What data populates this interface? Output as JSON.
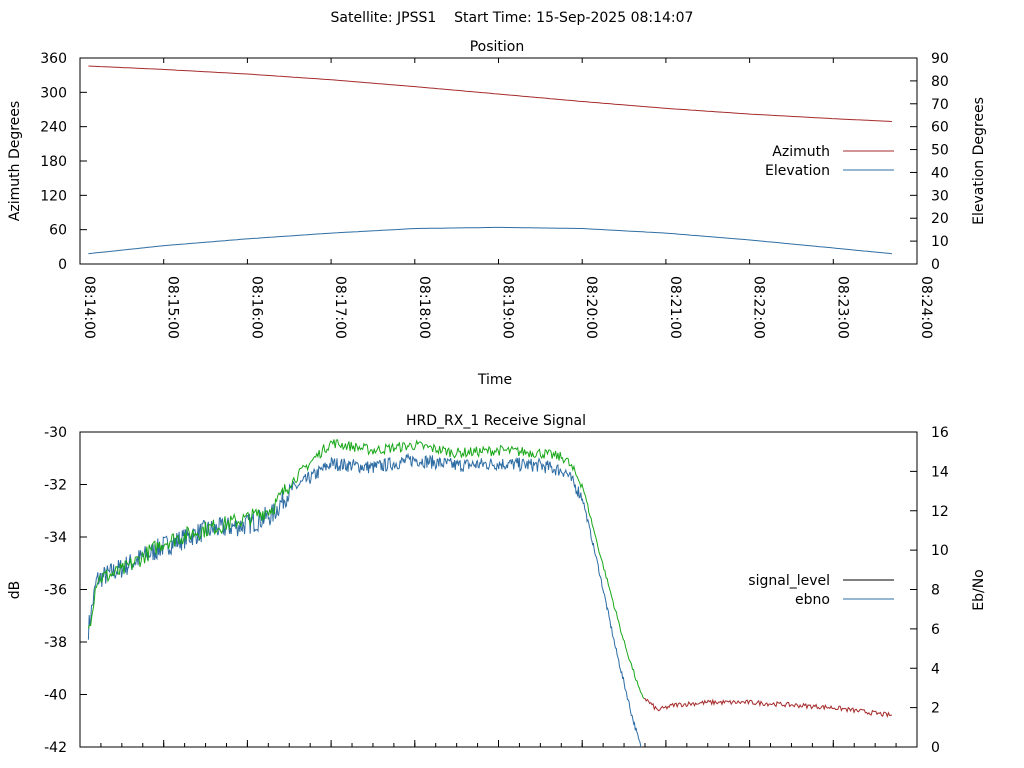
{
  "header": "Satellite: JPSS1    Start Time: 15-Sep-2025 08:14:07",
  "colors": {
    "azimuth": "#a52a2a",
    "elevation": "#2e6da4",
    "signal_level_green": "#1aa81a",
    "signal_level_red": "#a52a2a",
    "ebno": "#2e6da4",
    "legend_signal_level": "#000000"
  },
  "chart_data": [
    {
      "type": "line",
      "title": "Position",
      "xlabel": "Time",
      "ylabel": "Azimuth Degrees",
      "y2label": "Elevation Degrees",
      "xticks": [
        "08:14:00",
        "08:15:00",
        "08:16:00",
        "08:17:00",
        "08:18:00",
        "08:19:00",
        "08:20:00",
        "08:21:00",
        "08:22:00",
        "08:23:00",
        "08:24:00"
      ],
      "xlim": [
        0,
        10
      ],
      "ylim": [
        0,
        360
      ],
      "yticks": [
        0,
        60,
        120,
        180,
        240,
        300,
        360
      ],
      "y2lim": [
        0,
        90
      ],
      "y2ticks": [
        0,
        10,
        20,
        30,
        40,
        50,
        60,
        70,
        80,
        90
      ],
      "legend_position": "right",
      "series": [
        {
          "name": "Azimuth",
          "axis": "y",
          "x": [
            0.1,
            1,
            2,
            3,
            4,
            5,
            6,
            7,
            8,
            9,
            9.7
          ],
          "y": [
            346,
            340,
            332,
            322,
            310,
            297,
            284,
            272,
            262,
            254,
            249
          ]
        },
        {
          "name": "Elevation",
          "axis": "y2",
          "x": [
            0.1,
            1,
            2,
            3,
            4,
            5,
            6,
            7,
            8,
            9,
            9.7
          ],
          "y": [
            4.5,
            8,
            11,
            13.5,
            15.5,
            16,
            15.5,
            13.5,
            10.5,
            7,
            4.5
          ]
        }
      ]
    },
    {
      "type": "line",
      "title": "HRD_RX_1 Receive Signal",
      "ylabel": "dB",
      "y2label": "Eb/No",
      "xlim": [
        0,
        10
      ],
      "ylim": [
        -42,
        -30
      ],
      "yticks": [
        -42,
        -40,
        -38,
        -36,
        -34,
        -32,
        -30
      ],
      "y2lim": [
        0,
        16
      ],
      "y2ticks": [
        0,
        2,
        4,
        6,
        8,
        10,
        12,
        14,
        16
      ],
      "legend_position": "right",
      "series": [
        {
          "name": "signal_level",
          "axis": "y",
          "x": [
            0.1,
            0.2,
            0.5,
            1.0,
            1.5,
            2.0,
            2.3,
            2.5,
            2.8,
            3.0,
            3.5,
            4.0,
            4.5,
            5.0,
            5.5,
            5.8,
            6.0,
            6.2,
            6.5,
            6.7,
            6.9,
            7.1,
            7.5,
            8.0,
            8.5,
            9.0,
            9.7
          ],
          "y": [
            -37.6,
            -35.6,
            -35.3,
            -34.2,
            -33.7,
            -33.3,
            -32.9,
            -32.0,
            -31.0,
            -30.4,
            -30.7,
            -30.5,
            -30.8,
            -30.7,
            -30.8,
            -31.0,
            -32.0,
            -34.5,
            -38.0,
            -40.0,
            -40.6,
            -40.4,
            -40.3,
            -40.3,
            -40.4,
            -40.5,
            -40.8
          ]
        },
        {
          "name": "ebno",
          "axis": "y2",
          "x": [
            0.1,
            0.2,
            0.5,
            1.0,
            1.5,
            2.0,
            2.3,
            2.5,
            2.8,
            3.0,
            3.5,
            4.0,
            4.5,
            5.0,
            5.5,
            5.8,
            6.0,
            6.2,
            6.4,
            6.6,
            6.7
          ],
          "y": [
            6.0,
            8.5,
            9.1,
            10.2,
            11.0,
            11.3,
            11.8,
            13.0,
            13.8,
            14.4,
            14.2,
            14.6,
            14.3,
            14.4,
            14.3,
            14.0,
            12.7,
            9.0,
            5.0,
            1.5,
            0
          ]
        }
      ]
    }
  ]
}
